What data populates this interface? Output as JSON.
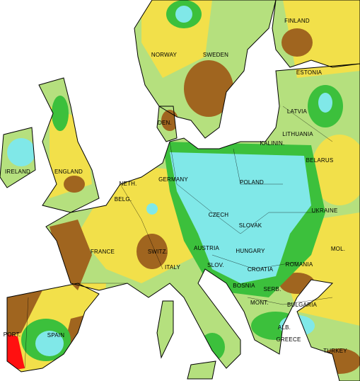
{
  "map": {
    "labels": [
      "FINLAND",
      "NORWAY",
      "SWEDEN",
      "ESTONIA",
      "LATVIA",
      "DEN.",
      "LITHUANIA",
      "KALININ.",
      "BELARUS",
      "IRELAND",
      "ENGLAND",
      "NETH.",
      "GERMANY",
      "POLAND",
      "BELG.",
      "UKRAINE",
      "CZECH",
      "SLOVAK",
      "FRANCE",
      "SWITZ.",
      "AUSTRIA",
      "HUNGARY",
      "MOL.",
      "SLOV.",
      "CROATIA",
      "ROMANIA",
      "ITALY",
      "BOSNIA",
      "SERB.",
      "BULGARIA",
      "MONT.",
      "SPAIN",
      "ALB.",
      "PORT.",
      "GREECE",
      "TURKEY"
    ]
  }
}
